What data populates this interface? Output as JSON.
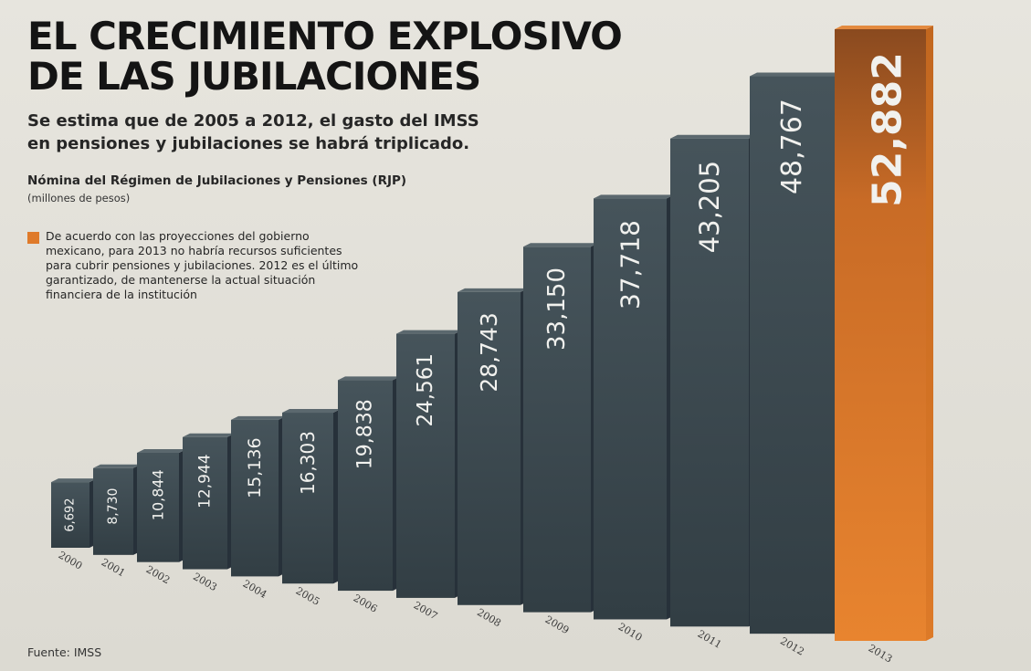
{
  "header": {
    "title_lines": [
      "EL CRECIMIENTO EXPLOSIVO",
      "DE LAS JUBILACIONES"
    ],
    "subtitle_lines": [
      "Se estima que de 2005 a 2012, el gasto del IMSS",
      "en pensiones y jubilaciones se habrá triplicado."
    ]
  },
  "legend": {
    "text_lines": [
      "De acuerdo con las proyecciones del gobierno",
      "mexicano, para 2013 no habría recursos suficientes",
      "para cubrir pensiones y jubilaciones. 2012 es el último",
      "garantizado, de mantenerse la actual situación",
      "financiera de la institución"
    ]
  },
  "source": "Fuente: IMSS",
  "colors": {
    "bar": "#3a474d",
    "highlight": "#df7a2a"
  },
  "chart_data": {
    "type": "bar",
    "title": "Nómina del Régimen de Jubilaciones y Pensiones (RJP)",
    "units": "(millones de pesos)",
    "categories": [
      "2000",
      "2001",
      "2002",
      "2003",
      "2004",
      "2005",
      "2006",
      "2007",
      "2008",
      "2009",
      "2010",
      "2011",
      "2012",
      "2013"
    ],
    "values": [
      6692,
      8730,
      10844,
      12944,
      15136,
      16303,
      19838,
      24561,
      28743,
      33150,
      37718,
      43205,
      48767,
      52882
    ],
    "value_labels": [
      "6,692",
      "8,730",
      "10,844",
      "12,944",
      "15,136",
      "16,303",
      "19,838",
      "24,561",
      "28,743",
      "33,150",
      "37,718",
      "43,205",
      "48,767",
      "52,882"
    ],
    "highlight_category": "2013",
    "grid": false,
    "legend_position": "top-left"
  }
}
